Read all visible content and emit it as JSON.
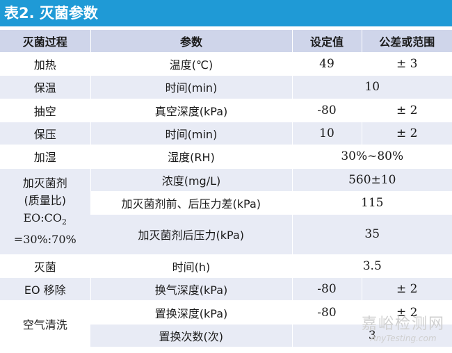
{
  "title": "表2. 灭菌参数",
  "headers": {
    "process": "灭菌过程",
    "parameter": "参数",
    "setpoint": "设定值",
    "tolerance": "公差或范围"
  },
  "rows": {
    "heating": {
      "process": "加热",
      "parameter": "温度(℃)",
      "setpoint": "49",
      "tolerance": "± 3"
    },
    "holding_temp": {
      "process": "保温",
      "parameter": "时间(min)",
      "value": "10"
    },
    "evacuation": {
      "process": "抽空",
      "parameter": "真空深度(kPa)",
      "setpoint": "-80",
      "tolerance": "± 2"
    },
    "holding_pressure": {
      "process": "保压",
      "parameter": "时间(min)",
      "setpoint": "10",
      "tolerance": "± 2"
    },
    "humidify": {
      "process": "加湿",
      "parameter": "湿度(RH)",
      "value": "30%~80%"
    },
    "sterilant": {
      "process_line1": "加灭菌剂",
      "process_line2": "(质量比)",
      "process_line3": "EO:CO",
      "process_line3_sub": "2",
      "process_line4": "=30%:70%",
      "concentration_param": "浓度(mg/L)",
      "concentration_value": "560±10",
      "pressure_diff_param": "加灭菌剂前、后压力差(kPa)",
      "pressure_diff_value": "115",
      "pressure_after_param": "加灭菌剂后压力(kPa)",
      "pressure_after_value": "35"
    },
    "sterilize": {
      "process": "灭菌",
      "parameter": "时间(h)",
      "value": "3.5"
    },
    "eo_removal": {
      "process": "EO 移除",
      "parameter": "换气深度(kPa)",
      "setpoint": "-80",
      "tolerance": "± 2"
    },
    "air_wash": {
      "process": "空气清洗",
      "depth_param": "置换深度(kPa)",
      "depth_setpoint": "-80",
      "depth_tolerance": "± 2",
      "count_param": "置换次数(次)",
      "count_value": "3"
    }
  },
  "watermark": {
    "cn": "嘉峪检测网",
    "en": "AnyTesting.com"
  },
  "colors": {
    "title_bg": "#1f9ad6",
    "header_bg": "#cfd5ea",
    "row_shade": "#e8ebf5"
  }
}
